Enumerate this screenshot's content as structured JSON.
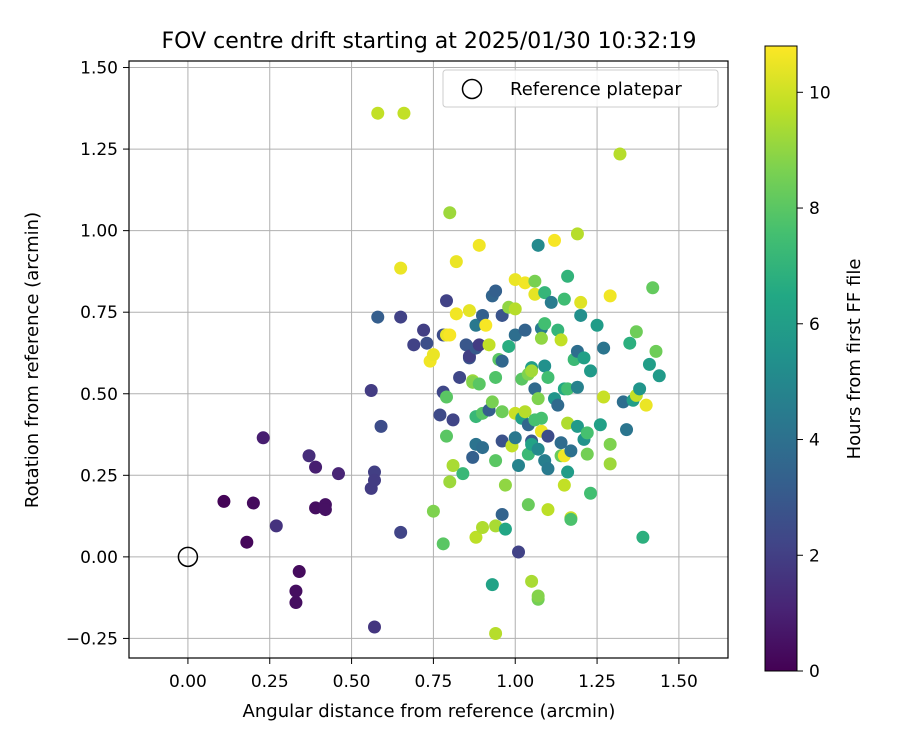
{
  "chart_data": {
    "type": "scatter",
    "title": "FOV centre drift starting at 2025/01/30 10:32:19",
    "xlabel": "Angular distance from reference (arcmin)",
    "ylabel": "Rotation from reference (arcmin)",
    "xlim": [
      -0.18,
      1.65
    ],
    "ylim": [
      -0.31,
      1.52
    ],
    "xticks": [
      0.0,
      0.25,
      0.5,
      0.75,
      1.0,
      1.25,
      1.5
    ],
    "xtick_labels": [
      "0.00",
      "0.25",
      "0.50",
      "0.75",
      "1.00",
      "1.25",
      "1.50"
    ],
    "yticks": [
      -0.25,
      0.0,
      0.25,
      0.5,
      0.75,
      1.0,
      1.25,
      1.5
    ],
    "ytick_labels": [
      "−0.25",
      "0.00",
      "0.25",
      "0.50",
      "0.75",
      "1.00",
      "1.25",
      "1.50"
    ],
    "grid": true,
    "legend": {
      "placement": "top-right",
      "entries": [
        "Reference platepar"
      ]
    },
    "reference_point": {
      "x": 0.0,
      "y": 0.0
    },
    "colorbar": {
      "label": "Hours from first FF file",
      "range": [
        0,
        10.8
      ],
      "ticks": [
        0,
        2,
        4,
        6,
        8,
        10
      ],
      "tick_labels": [
        "0",
        "2",
        "4",
        "6",
        "8",
        "10"
      ],
      "colormap": "viridis"
    },
    "points": [
      [
        0.11,
        0.17,
        0.1
      ],
      [
        0.18,
        0.045,
        0.2
      ],
      [
        0.2,
        0.165,
        0.3
      ],
      [
        0.23,
        0.365,
        0.9
      ],
      [
        0.27,
        0.095,
        1.6
      ],
      [
        0.34,
        -0.045,
        0.3
      ],
      [
        0.33,
        -0.105,
        0.4
      ],
      [
        0.33,
        -0.14,
        0.4
      ],
      [
        0.37,
        0.31,
        1.4
      ],
      [
        0.39,
        0.275,
        0.9
      ],
      [
        0.39,
        0.15,
        0.4
      ],
      [
        0.42,
        0.16,
        0.5
      ],
      [
        0.42,
        0.145,
        0.5
      ],
      [
        0.46,
        0.255,
        1.1
      ],
      [
        0.56,
        0.51,
        1.9
      ],
      [
        0.56,
        0.21,
        1.9
      ],
      [
        0.57,
        0.26,
        2.0
      ],
      [
        0.57,
        0.235,
        1.9
      ],
      [
        0.57,
        -0.215,
        1.7
      ],
      [
        0.58,
        0.735,
        3.2
      ],
      [
        0.58,
        1.36,
        9.8
      ],
      [
        0.59,
        0.4,
        2.5
      ],
      [
        0.65,
        0.735,
        2.1
      ],
      [
        0.65,
        0.075,
        2.2
      ],
      [
        0.66,
        1.36,
        9.8
      ],
      [
        0.65,
        0.885,
        10.5
      ],
      [
        0.69,
        0.65,
        2.1
      ],
      [
        0.72,
        0.695,
        2.0
      ],
      [
        0.73,
        0.655,
        2.6
      ],
      [
        0.74,
        0.6,
        10.6
      ],
      [
        0.75,
        0.62,
        10.5
      ],
      [
        0.75,
        0.14,
        8.7
      ],
      [
        0.77,
        0.435,
        2.4
      ],
      [
        0.78,
        0.04,
        8.0
      ],
      [
        0.78,
        0.505,
        2.3
      ],
      [
        0.78,
        0.68,
        2.5
      ],
      [
        0.79,
        0.785,
        2.1
      ],
      [
        0.79,
        0.68,
        10.5
      ],
      [
        0.79,
        0.49,
        8.0
      ],
      [
        0.79,
        0.37,
        8.0
      ],
      [
        0.8,
        1.055,
        9.2
      ],
      [
        0.8,
        0.68,
        10.7
      ],
      [
        0.8,
        0.23,
        9.2
      ],
      [
        0.81,
        0.42,
        2.2
      ],
      [
        0.81,
        0.28,
        9.4
      ],
      [
        0.82,
        0.905,
        10.5
      ],
      [
        0.82,
        0.745,
        10.6
      ],
      [
        0.83,
        0.55,
        2.3
      ],
      [
        0.84,
        0.255,
        7.2
      ],
      [
        0.85,
        0.65,
        2.9
      ],
      [
        0.86,
        0.61,
        2.8
      ],
      [
        0.86,
        0.755,
        10.4
      ],
      [
        0.86,
        0.615,
        2.0
      ],
      [
        0.87,
        0.54,
        9.2
      ],
      [
        0.87,
        0.535,
        8.8
      ],
      [
        0.87,
        0.305,
        3.3
      ],
      [
        0.88,
        0.71,
        4.3
      ],
      [
        0.88,
        0.64,
        3.0
      ],
      [
        0.88,
        0.345,
        4.1
      ],
      [
        0.88,
        0.06,
        9.7
      ],
      [
        0.88,
        0.43,
        7.2
      ],
      [
        0.89,
        0.955,
        10.6
      ],
      [
        0.89,
        0.53,
        8.0
      ],
      [
        0.89,
        0.65,
        1.9
      ],
      [
        0.9,
        0.44,
        7.9
      ],
      [
        0.9,
        0.335,
        3.9
      ],
      [
        0.9,
        0.74,
        3.3
      ],
      [
        0.9,
        0.09,
        9.5
      ],
      [
        0.91,
        0.71,
        10.7
      ],
      [
        0.92,
        0.65,
        9.8
      ],
      [
        0.92,
        0.45,
        3.2
      ],
      [
        0.93,
        0.8,
        3.5
      ],
      [
        0.93,
        0.475,
        8.6
      ],
      [
        0.93,
        -0.085,
        6.2
      ],
      [
        0.94,
        0.55,
        7.8
      ],
      [
        0.94,
        0.295,
        8.0
      ],
      [
        0.94,
        0.095,
        9.4
      ],
      [
        0.94,
        -0.235,
        9.6
      ],
      [
        0.94,
        0.815,
        3.3
      ],
      [
        0.95,
        0.605,
        8.0
      ],
      [
        0.96,
        0.74,
        2.8
      ],
      [
        0.96,
        0.6,
        3.6
      ],
      [
        0.96,
        0.445,
        8.4
      ],
      [
        0.96,
        0.355,
        2.7
      ],
      [
        0.96,
        0.13,
        3.4
      ],
      [
        0.97,
        0.22,
        9.0
      ],
      [
        0.97,
        0.085,
        6.4
      ],
      [
        0.98,
        0.765,
        9.0
      ],
      [
        0.98,
        0.645,
        6.7
      ],
      [
        0.99,
        0.34,
        9.8
      ],
      [
        1.0,
        0.85,
        10.5
      ],
      [
        1.0,
        0.76,
        9.6
      ],
      [
        1.0,
        0.68,
        3.9
      ],
      [
        1.0,
        0.44,
        9.9
      ],
      [
        1.0,
        0.365,
        4.3
      ],
      [
        1.01,
        0.28,
        4.8
      ],
      [
        1.01,
        0.015,
        2.1
      ],
      [
        1.02,
        0.545,
        8.0
      ],
      [
        1.02,
        0.425,
        6.1
      ],
      [
        1.03,
        0.445,
        9.6
      ],
      [
        1.03,
        0.84,
        10.6
      ],
      [
        1.03,
        0.695,
        3.4
      ],
      [
        1.04,
        0.56,
        8.7
      ],
      [
        1.04,
        0.405,
        3.6
      ],
      [
        1.04,
        0.315,
        7.3
      ],
      [
        1.04,
        0.16,
        8.3
      ],
      [
        1.05,
        0.58,
        6.0
      ],
      [
        1.05,
        0.57,
        9.3
      ],
      [
        1.05,
        0.355,
        3.0
      ],
      [
        1.05,
        0.345,
        6.2
      ],
      [
        1.05,
        -0.075,
        9.4
      ],
      [
        1.06,
        0.845,
        8.6
      ],
      [
        1.06,
        0.805,
        10.4
      ],
      [
        1.06,
        0.515,
        3.7
      ],
      [
        1.06,
        0.42,
        7.6
      ],
      [
        1.07,
        0.955,
        5.1
      ],
      [
        1.07,
        0.485,
        8.7
      ],
      [
        1.07,
        -0.13,
        8.5
      ],
      [
        1.07,
        -0.12,
        8.8
      ],
      [
        1.07,
        0.33,
        5.1
      ],
      [
        1.08,
        0.385,
        10.5
      ],
      [
        1.08,
        0.7,
        4.5
      ],
      [
        1.08,
        0.67,
        9.0
      ],
      [
        1.08,
        0.425,
        7.6
      ],
      [
        1.09,
        0.81,
        7.1
      ],
      [
        1.09,
        0.715,
        7.5
      ],
      [
        1.09,
        0.295,
        4.6
      ],
      [
        1.09,
        0.585,
        5.4
      ],
      [
        1.1,
        0.55,
        7.5
      ],
      [
        1.1,
        0.145,
        9.7
      ],
      [
        1.1,
        0.37,
        2.5
      ],
      [
        1.1,
        0.27,
        4.4
      ],
      [
        1.11,
        0.78,
        4.5
      ],
      [
        1.12,
        0.97,
        10.7
      ],
      [
        1.12,
        0.485,
        5.6
      ],
      [
        1.13,
        0.465,
        3.7
      ],
      [
        1.13,
        0.695,
        7.1
      ],
      [
        1.14,
        0.665,
        9.8
      ],
      [
        1.14,
        0.35,
        3.8
      ],
      [
        1.14,
        0.31,
        8.3
      ],
      [
        1.15,
        0.31,
        10.6
      ],
      [
        1.15,
        0.515,
        6.5
      ],
      [
        1.15,
        0.79,
        7.4
      ],
      [
        1.15,
        0.22,
        9.8
      ],
      [
        1.16,
        0.86,
        7.0
      ],
      [
        1.16,
        0.41,
        9.5
      ],
      [
        1.16,
        0.26,
        5.9
      ],
      [
        1.16,
        0.515,
        7.5
      ],
      [
        1.17,
        0.325,
        4.0
      ],
      [
        1.17,
        0.12,
        10.0
      ],
      [
        1.17,
        0.115,
        7.7
      ],
      [
        1.18,
        0.605,
        7.3
      ],
      [
        1.19,
        0.99,
        9.6
      ],
      [
        1.19,
        0.63,
        3.9
      ],
      [
        1.19,
        0.52,
        4.7
      ],
      [
        1.19,
        0.4,
        5.8
      ],
      [
        1.2,
        0.74,
        5.3
      ],
      [
        1.2,
        0.78,
        10.3
      ],
      [
        1.21,
        0.61,
        6.1
      ],
      [
        1.21,
        0.36,
        5.5
      ],
      [
        1.22,
        0.38,
        7.6
      ],
      [
        1.22,
        0.315,
        8.5
      ],
      [
        1.23,
        0.57,
        5.8
      ],
      [
        1.23,
        0.195,
        7.5
      ],
      [
        1.25,
        0.71,
        5.9
      ],
      [
        1.26,
        0.405,
        6.1
      ],
      [
        1.27,
        0.64,
        4.2
      ],
      [
        1.27,
        0.49,
        9.9
      ],
      [
        1.29,
        0.8,
        10.6
      ],
      [
        1.29,
        0.345,
        8.7
      ],
      [
        1.29,
        0.285,
        9.2
      ],
      [
        1.32,
        1.235,
        9.6
      ],
      [
        1.33,
        0.475,
        3.9
      ],
      [
        1.34,
        0.39,
        4.2
      ],
      [
        1.35,
        0.655,
        6.8
      ],
      [
        1.36,
        0.48,
        6.0
      ],
      [
        1.37,
        0.69,
        8.4
      ],
      [
        1.37,
        0.495,
        9.8
      ],
      [
        1.38,
        0.515,
        5.6
      ],
      [
        1.39,
        0.06,
        6.8
      ],
      [
        1.4,
        0.465,
        10.5
      ],
      [
        1.41,
        0.59,
        6.0
      ],
      [
        1.42,
        0.825,
        8.2
      ],
      [
        1.43,
        0.63,
        8.4
      ],
      [
        1.44,
        0.555,
        5.8
      ]
    ]
  }
}
